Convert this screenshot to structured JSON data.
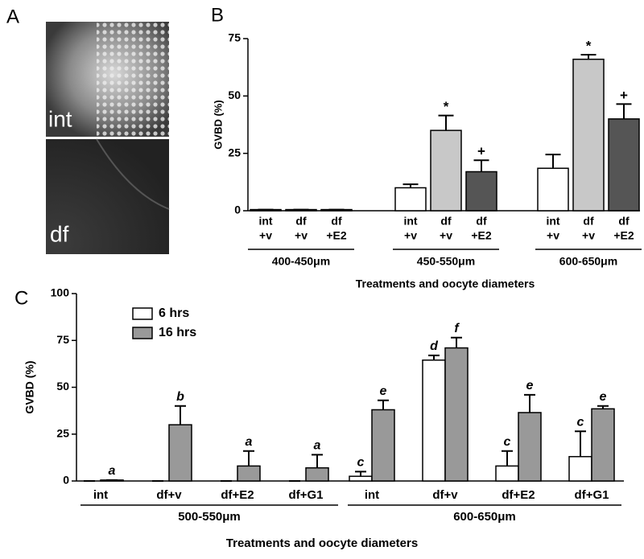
{
  "panel_a": {
    "letter": "A",
    "labels": [
      "int",
      "df"
    ]
  },
  "chart_data": [
    {
      "type": "bar",
      "panel": "B",
      "ylabel": "GVBD (%)",
      "xlabel": "Treatments and oocyte diameters",
      "ylim": [
        0,
        75
      ],
      "yticks": [
        0,
        25,
        50,
        75
      ],
      "colors": [
        "#ffffff",
        "#c8c8c8",
        "#555555"
      ],
      "groups": [
        {
          "label": "400-450μm",
          "categories": [
            [
              "int",
              "+v"
            ],
            [
              "df",
              "+v"
            ],
            [
              "df",
              "+E2"
            ]
          ],
          "values": [
            0.5,
            0.5,
            0.5
          ],
          "errors": [
            0,
            0,
            0
          ],
          "annotations": [
            null,
            null,
            null
          ]
        },
        {
          "label": "450-550μm",
          "categories": [
            [
              "int",
              "+v"
            ],
            [
              "df",
              "+v"
            ],
            [
              "df",
              "+E2"
            ]
          ],
          "values": [
            10,
            35,
            17
          ],
          "errors": [
            1.5,
            6.5,
            5
          ],
          "annotations": [
            null,
            "*",
            "+"
          ]
        },
        {
          "label": "600-650μm",
          "categories": [
            [
              "int",
              "+v"
            ],
            [
              "df",
              "+v"
            ],
            [
              "df",
              "+E2"
            ]
          ],
          "values": [
            18.5,
            66,
            40
          ],
          "errors": [
            6,
            2,
            6.5
          ],
          "annotations": [
            null,
            "*",
            "+"
          ]
        }
      ]
    },
    {
      "type": "grouped_bar",
      "panel": "C",
      "ylabel": "GVBD (%)",
      "xlabel": "Treatments and oocyte diameters",
      "ylim": [
        0,
        100
      ],
      "yticks": [
        0,
        25,
        50,
        75,
        100
      ],
      "legend": "upper left",
      "groups": [
        {
          "label": "500-550μm",
          "categories": [
            "int",
            "df+v",
            "df+E2",
            "df+G1"
          ]
        },
        {
          "label": "600-650μm",
          "categories": [
            "int",
            "df+v",
            "df+E2",
            "df+G1"
          ]
        }
      ],
      "series": [
        {
          "name": "6 hrs",
          "color": "#ffffff",
          "values": [
            0,
            0,
            0,
            0,
            2.5,
            64.5,
            8,
            13
          ],
          "errors": [
            0,
            0,
            0,
            0,
            2.5,
            2.5,
            8,
            13.5
          ],
          "annotations": [
            null,
            null,
            null,
            null,
            "c",
            "d",
            "c",
            "c"
          ]
        },
        {
          "name": "16 hrs",
          "color": "#999999",
          "values": [
            0.5,
            30,
            8,
            7,
            38,
            71,
            36.5,
            38.5
          ],
          "errors": [
            0,
            10,
            8,
            7,
            5,
            5.5,
            9.5,
            1.5
          ],
          "annotations": [
            "a",
            "b",
            "a",
            "a",
            "e",
            "f",
            "e",
            "e"
          ]
        }
      ]
    }
  ]
}
